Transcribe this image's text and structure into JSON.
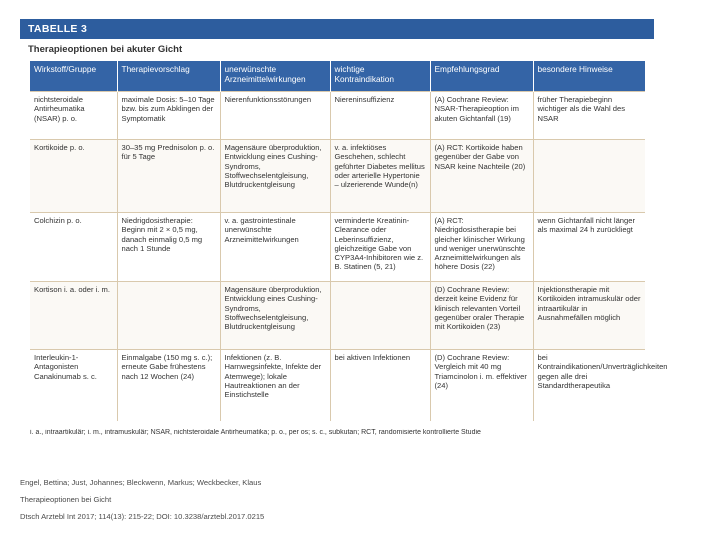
{
  "figure": {
    "label": "TABELLE 3",
    "caption": "Therapieoptionen bei akuter Gicht"
  },
  "table": {
    "headers": [
      "Wirkstoff/Gruppe",
      "Therapievorschlag",
      "unerwünschte Arzneimittelwirkungen",
      "wichtige Kontraindikation",
      "Empfehlungsgrad",
      "besondere Hinweise"
    ],
    "rows": [
      [
        "nichtsteroidale Antirheumatika (NSAR) p. o.",
        "maximale Dosis: 5–10 Tage bzw. bis zum Abklingen der Symptomatik",
        "Nierenfunktionsstörungen",
        "Niereninsuffizienz",
        "(A) Cochrane Review: NSAR-Therapieoption im akuten Gichtanfall (19)",
        "früher Therapiebeginn wichtiger als die Wahl des NSAR"
      ],
      [
        "Kortikoide p. o.",
        "30–35 mg Prednisolon p. o. für 5 Tage",
        "Magensäure überproduktion, Entwicklung eines Cushing-Syndroms, Stoffwechselentgleisung, Blutdruckentgleisung",
        "v. a. infektiöses Geschehen, schlecht geführter Diabetes mellitus oder arterielle Hypertonie – ulzerierende Wunde(n)",
        "(A) RCT: Kortikoide haben gegenüber der Gabe von NSAR keine Nachteile (20)",
        ""
      ],
      [
        "Colchizin p. o.",
        "Niedrigdosistherapie: Beginn mit 2 × 0,5 mg, danach einmalig 0,5 mg nach 1 Stunde",
        "v. a. gastrointestinale unerwünschte Arzneimittelwirkungen",
        "verminderte Kreatinin-Clearance oder Leberinsuffizienz, gleichzeitige Gabe von CYP3A4-Inhibitoren wie z. B. Statinen (5, 21)",
        "(A) RCT: Niedrigdosistherapie bei gleicher klinischer Wirkung und weniger unerwünschte Arzneimittelwirkungen als höhere Dosis (22)",
        "wenn Gichtanfall nicht länger als maximal 24 h zurückliegt"
      ],
      [
        "Kortison i. a. oder i. m.",
        "",
        "Magensäure überproduktion, Entwicklung eines Cushing-Syndroms, Stoffwechselentgleisung, Blutdruckentgleisung",
        "",
        "(D) Cochrane Review: derzeit keine Evidenz für klinisch relevanten Vorteil gegenüber oraler Therapie mit Kortikoiden (23)",
        "Injektionstherapie mit Kortikoiden intramuskulär oder intraartikulär in Ausnahmefällen möglich"
      ],
      [
        "Interleukin-1-Antagonisten Canakinumab s. c.",
        "Einmalgabe (150 mg s. c.); erneute Gabe frühestens nach 12 Wochen (24)",
        "Infektionen (z. B. Harnwegsinfekte, Infekte der Atemwege); lokale Hautreaktionen an der Einstichstelle",
        "bei aktiven Infektionen",
        "(D) Cochrane Review: Vergleich mit 40 mg Triamcinolon i. m. effektiver (24)",
        "bei Kontraindikationen/Unverträglichkeiten gegen alle drei Standardtherapeutika"
      ]
    ]
  },
  "footnote": "i. a., intraartikulär; i. m., intramuskulär; NSAR, nichtsteroidale Antirheumatika; p. o., per os; s. c., subkutan; RCT, randomisierte kontrollierte Studie",
  "citation": {
    "authors": "Engel, Bettina; Just, Johannes; Bleckwenn, Markus; Weckbecker, Klaus",
    "title": "Therapieoptionen bei Gicht",
    "source": "Dtsch Arztebl Int 2017; 114(13): 215-22; DOI: 10.3238/arztebl.2017.0215"
  }
}
